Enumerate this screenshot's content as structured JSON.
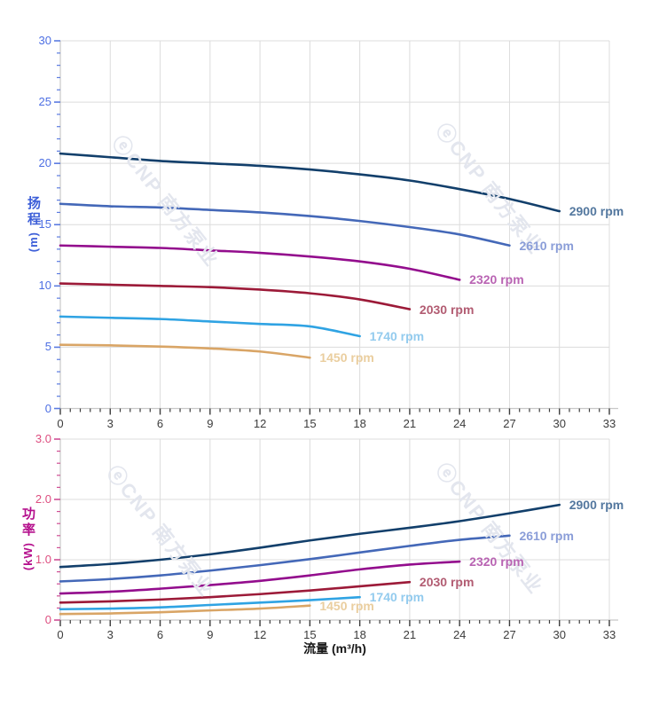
{
  "page": {
    "background": "#ffffff"
  },
  "watermark": {
    "text": "ⓔCNP 南方泵业",
    "color": "#e3e6ee"
  },
  "chart_data": [
    {
      "type": "line",
      "id": "head-vs-flow",
      "title": "",
      "xlabel": "",
      "ylabel": "扬程 (m)",
      "ylabel_cjk": "扬程",
      "ylabel_unit": "(m)",
      "xlim": [
        0,
        33
      ],
      "ylim": [
        0,
        30
      ],
      "grid": true,
      "x_major_ticks": [
        0,
        3,
        6,
        9,
        12,
        15,
        18,
        21,
        24,
        27,
        30,
        33
      ],
      "x_minor_step": 0.6,
      "y_major_ticks": [
        0,
        5,
        10,
        15,
        20,
        25,
        30
      ],
      "y_tick_labels": [
        "0",
        "5",
        "10",
        "15",
        "20",
        "25",
        "30"
      ],
      "y_minor_step": 1,
      "colors": {
        "grid": "#dcdcdc",
        "axis_line": "#c8c8c8",
        "y_tick_label": "#4d6fe3",
        "y_tick_mark": "#5b7be0",
        "x_tick_label": "#3c3c3c",
        "x_tick_mark": "#3c3c3c",
        "ylabel": "#3d5fd8"
      },
      "legend_position": "end-of-line-labels",
      "series": [
        {
          "name": "2900 rpm",
          "color": "#123f6b",
          "label_color": "#54789f",
          "x": [
            0,
            3,
            6,
            9,
            12,
            15,
            18,
            21,
            24,
            27,
            30
          ],
          "y": [
            20.8,
            20.5,
            20.2,
            20.0,
            19.8,
            19.5,
            19.1,
            18.6,
            17.9,
            17.1,
            16.1
          ]
        },
        {
          "name": "2610 rpm",
          "color": "#4468b8",
          "label_color": "#8a9dd8",
          "x": [
            0,
            3,
            6,
            9,
            12,
            15,
            18,
            21,
            24,
            27
          ],
          "y": [
            16.7,
            16.5,
            16.4,
            16.2,
            16.0,
            15.7,
            15.3,
            14.8,
            14.2,
            13.3
          ]
        },
        {
          "name": "2320 rpm",
          "color": "#930d8d",
          "label_color": "#b964b3",
          "x": [
            0,
            3,
            6,
            9,
            12,
            15,
            18,
            21,
            24
          ],
          "y": [
            13.3,
            13.2,
            13.1,
            12.9,
            12.7,
            12.4,
            12.0,
            11.4,
            10.5
          ]
        },
        {
          "name": "2030 rpm",
          "color": "#9c1a38",
          "label_color": "#b25c72",
          "x": [
            0,
            3,
            6,
            9,
            12,
            15,
            18,
            21
          ],
          "y": [
            10.2,
            10.1,
            10.0,
            9.9,
            9.7,
            9.4,
            8.9,
            8.1
          ]
        },
        {
          "name": "1740 rpm",
          "color": "#2fa3e3",
          "label_color": "#93cbee",
          "x": [
            0,
            3,
            6,
            9,
            12,
            15,
            18
          ],
          "y": [
            7.5,
            7.4,
            7.3,
            7.1,
            6.9,
            6.7,
            5.9
          ]
        },
        {
          "name": "1450 rpm",
          "color": "#d9a566",
          "label_color": "#eace9f",
          "x": [
            0,
            3,
            6,
            9,
            12,
            15
          ],
          "y": [
            5.2,
            5.15,
            5.05,
            4.9,
            4.65,
            4.15
          ]
        }
      ]
    },
    {
      "type": "line",
      "id": "power-vs-flow",
      "title": "",
      "xlabel": "流量 (m³/h)",
      "ylabel": "功率 (kW)",
      "ylabel_cjk": "功率",
      "ylabel_unit": "(kW)",
      "xlim": [
        0,
        33
      ],
      "ylim": [
        0,
        3
      ],
      "grid": true,
      "x_major_ticks": [
        0,
        3,
        6,
        9,
        12,
        15,
        18,
        21,
        24,
        27,
        30,
        33
      ],
      "x_minor_step": 0.6,
      "y_major_ticks": [
        0,
        1,
        2,
        3
      ],
      "y_tick_labels": [
        "0",
        "1.0",
        "2.0",
        "3.0"
      ],
      "y_minor_step": 0.2,
      "colors": {
        "grid": "#dcdcdc",
        "axis_line": "#c8c8c8",
        "y_tick_label": "#dd4d7f",
        "y_tick_mark": "#cf4f94",
        "x_tick_label": "#3c3c3c",
        "x_tick_mark": "#3c3c3c",
        "ylabel": "#b5108d"
      },
      "legend_position": "end-of-line-labels",
      "series": [
        {
          "name": "2900 rpm",
          "color": "#123f6b",
          "label_color": "#54789f",
          "x": [
            0,
            3,
            6,
            9,
            12,
            15,
            18,
            21,
            24,
            27,
            30
          ],
          "y": [
            0.88,
            0.93,
            1.0,
            1.09,
            1.2,
            1.32,
            1.43,
            1.53,
            1.64,
            1.77,
            1.91
          ]
        },
        {
          "name": "2610 rpm",
          "color": "#4468b8",
          "label_color": "#8a9dd8",
          "x": [
            0,
            3,
            6,
            9,
            12,
            15,
            18,
            21,
            24,
            27
          ],
          "y": [
            0.64,
            0.68,
            0.74,
            0.82,
            0.91,
            1.01,
            1.12,
            1.23,
            1.33,
            1.4
          ]
        },
        {
          "name": "2320 rpm",
          "color": "#930d8d",
          "label_color": "#b964b3",
          "x": [
            0,
            3,
            6,
            9,
            12,
            15,
            18,
            21,
            24
          ],
          "y": [
            0.44,
            0.47,
            0.52,
            0.58,
            0.65,
            0.74,
            0.84,
            0.92,
            0.97
          ]
        },
        {
          "name": "2030 rpm",
          "color": "#9c1a38",
          "label_color": "#b25c72",
          "x": [
            0,
            3,
            6,
            9,
            12,
            15,
            18,
            21
          ],
          "y": [
            0.29,
            0.31,
            0.34,
            0.38,
            0.43,
            0.49,
            0.56,
            0.63
          ]
        },
        {
          "name": "1740 rpm",
          "color": "#2fa3e3",
          "label_color": "#93cbee",
          "x": [
            0,
            3,
            6,
            9,
            12,
            15,
            18
          ],
          "y": [
            0.18,
            0.19,
            0.21,
            0.25,
            0.29,
            0.33,
            0.38
          ]
        },
        {
          "name": "1450 rpm",
          "color": "#d9a566",
          "label_color": "#eace9f",
          "x": [
            0,
            3,
            6,
            9,
            12,
            15
          ],
          "y": [
            0.1,
            0.11,
            0.13,
            0.16,
            0.19,
            0.24
          ]
        }
      ]
    }
  ]
}
